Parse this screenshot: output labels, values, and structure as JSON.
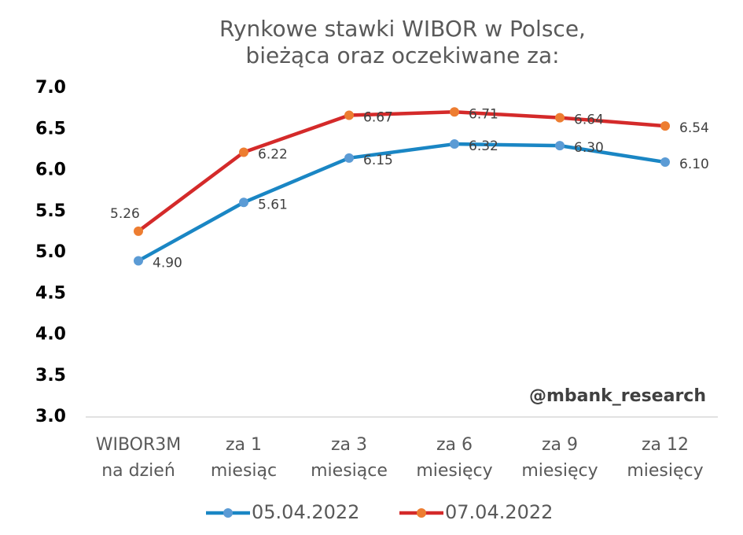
{
  "chart_data": {
    "type": "line",
    "title": [
      "Rynkowe stawki WIBOR w Polsce,",
      "bieżąca oraz oczekiwane za:"
    ],
    "categories": [
      [
        "WIBOR3M",
        "na dzień"
      ],
      [
        "za 1",
        "miesiąc"
      ],
      [
        "za 3",
        "miesiące"
      ],
      [
        "za 6",
        "miesięcy"
      ],
      [
        "za 9",
        "miesięcy"
      ],
      [
        "za 12",
        "miesięcy"
      ]
    ],
    "series": [
      {
        "name": "05.04.2022",
        "color": "#1a86c4",
        "marker_color": "#5b9bd5",
        "values": [
          4.9,
          5.61,
          6.15,
          6.32,
          6.3,
          6.1
        ],
        "value_labels": [
          "4.90",
          "5.61",
          "6.15",
          "6.32",
          "6.30",
          "6.10"
        ]
      },
      {
        "name": "07.04.2022",
        "color": "#d42a2a",
        "marker_color": "#ed7d31",
        "values": [
          5.26,
          6.22,
          6.67,
          6.71,
          6.64,
          6.54
        ],
        "value_labels": [
          "5.26",
          "6.22",
          "6.67",
          "6.71",
          "6.64",
          "6.54"
        ]
      }
    ],
    "ylim": [
      3,
      7
    ],
    "yticks": [
      {
        "value": 3,
        "label": "3.0"
      },
      {
        "value": 3.5,
        "label": "3.5"
      },
      {
        "value": 4,
        "label": "4.0"
      },
      {
        "value": 4.5,
        "label": "4.5"
      },
      {
        "value": 5,
        "label": "5.0"
      },
      {
        "value": 5.5,
        "label": "5.5"
      },
      {
        "value": 6,
        "label": "6.0"
      },
      {
        "value": 6.5,
        "label": "6.5"
      },
      {
        "value": 7,
        "label": "7.0"
      }
    ],
    "annotation": "@mbank_research",
    "grid": false,
    "legend": "bottom"
  }
}
